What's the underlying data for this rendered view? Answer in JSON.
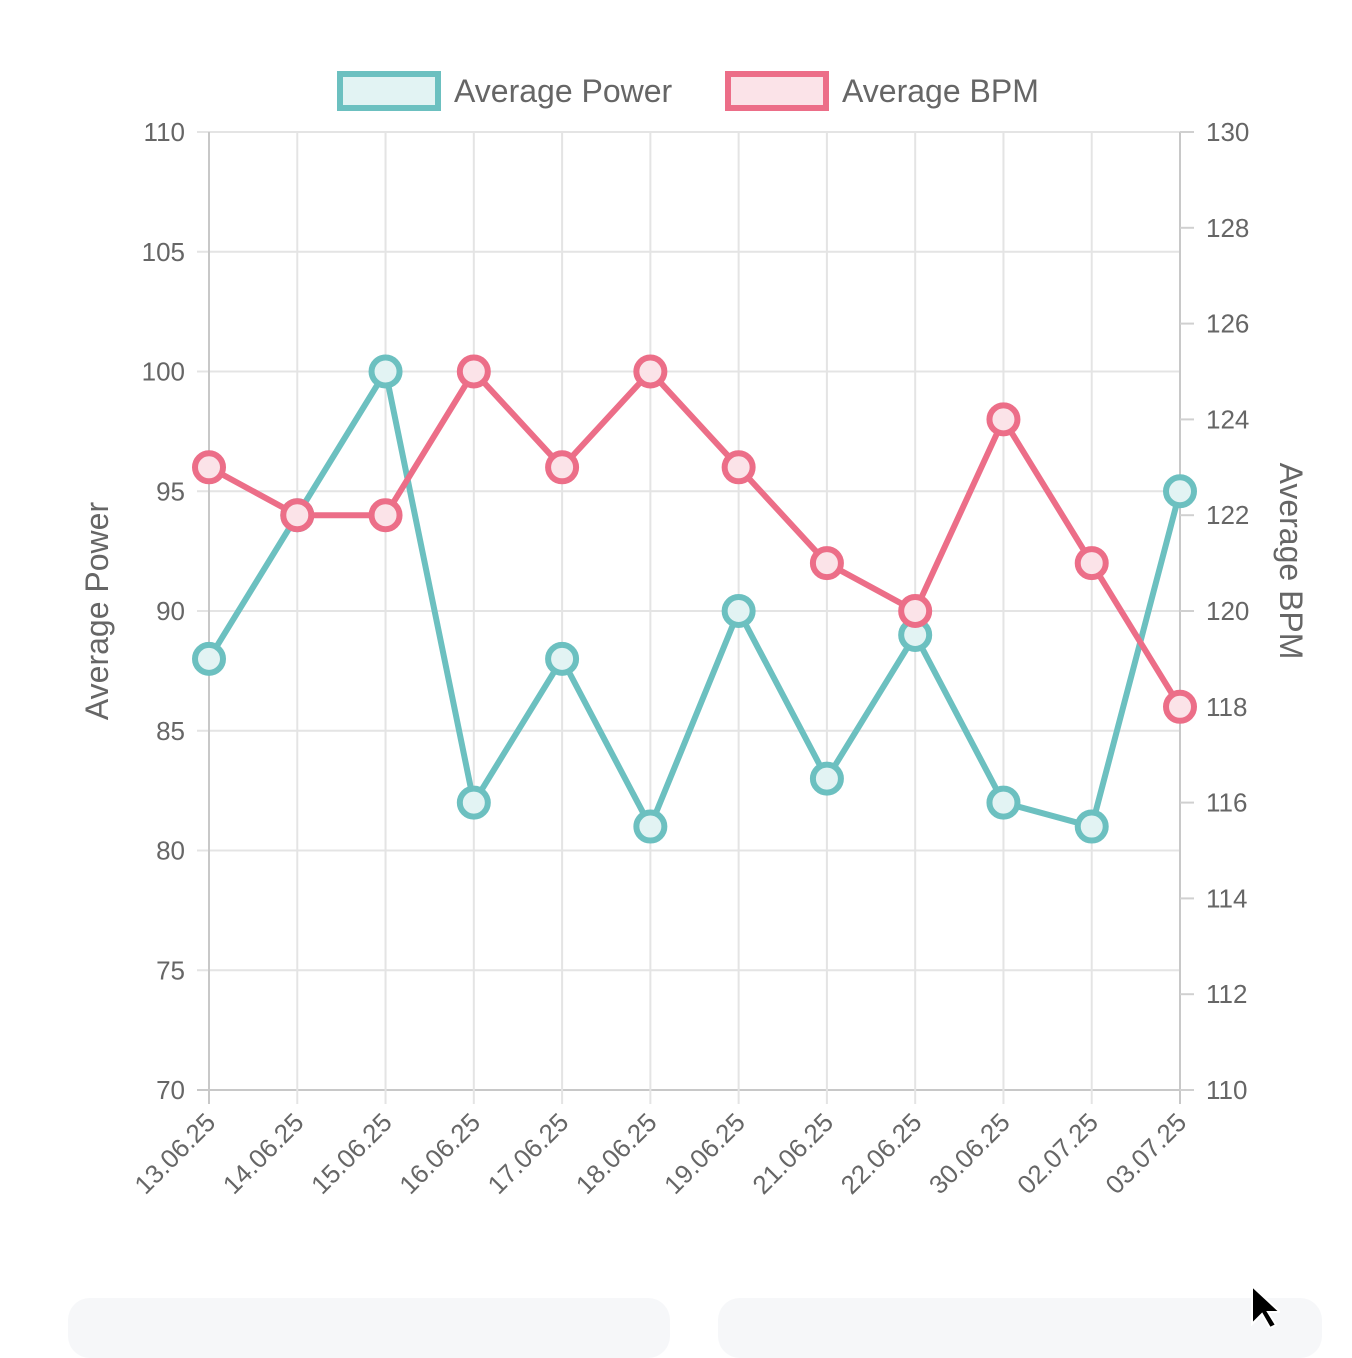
{
  "chart_data": {
    "type": "line",
    "categories": [
      "13.06.25",
      "14.06.25",
      "15.06.25",
      "16.06.25",
      "17.06.25",
      "18.06.25",
      "19.06.25",
      "21.06.25",
      "22.06.25",
      "30.06.25",
      "02.07.25",
      "03.07.25"
    ],
    "series": [
      {
        "name": "Average Power",
        "axis": "left",
        "color": "#6cc0c0",
        "fill": "#e2f3f3",
        "values": [
          88,
          94,
          100,
          82,
          88,
          81,
          90,
          83,
          89,
          82,
          81,
          95
        ]
      },
      {
        "name": "Average BPM",
        "axis": "right",
        "color": "#ec6e88",
        "fill": "#fbe3e8",
        "values": [
          123,
          122,
          122,
          125,
          123,
          125,
          123,
          121,
          120,
          124,
          121,
          118
        ]
      }
    ],
    "y_left": {
      "label": "Average Power",
      "min": 70,
      "max": 110,
      "step": 5
    },
    "y_right": {
      "label": "Average BPM",
      "min": 110,
      "max": 130,
      "step": 2
    },
    "grid": true,
    "legend_position": "top"
  }
}
